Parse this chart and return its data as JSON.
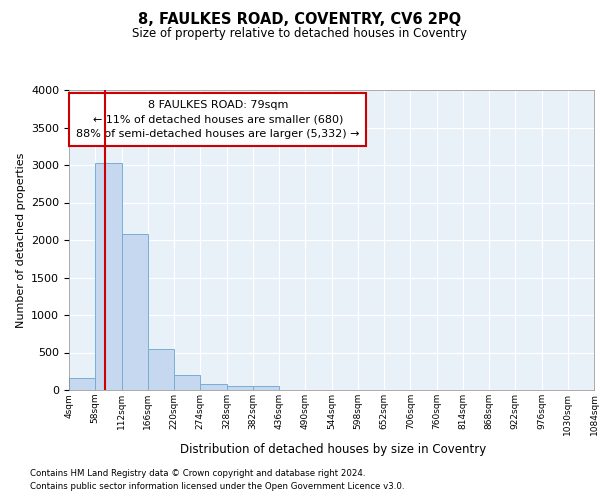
{
  "title": "8, FAULKES ROAD, COVENTRY, CV6 2PQ",
  "subtitle": "Size of property relative to detached houses in Coventry",
  "xlabel": "Distribution of detached houses by size in Coventry",
  "ylabel": "Number of detached properties",
  "annotation_text": "8 FAULKES ROAD: 79sqm\n← 11% of detached houses are smaller (680)\n88% of semi-detached houses are larger (5,332) →",
  "footer1": "Contains HM Land Registry data © Crown copyright and database right 2024.",
  "footer2": "Contains public sector information licensed under the Open Government Licence v3.0.",
  "property_size": 79,
  "bar_color": "#c5d8f0",
  "bar_edge_color": "#7aadd4",
  "red_line_color": "#cc0000",
  "annotation_box_edgecolor": "#cc0000",
  "plot_bg_color": "#e8f0f8",
  "ylim": [
    0,
    4000
  ],
  "yticks": [
    0,
    500,
    1000,
    1500,
    2000,
    2500,
    3000,
    3500,
    4000
  ],
  "bin_edges": [
    4,
    58,
    112,
    166,
    220,
    274,
    328,
    382,
    436,
    490,
    544,
    598,
    652,
    706,
    760,
    814,
    868,
    922,
    976,
    1030,
    1084
  ],
  "bar_heights": [
    155,
    3030,
    2080,
    550,
    205,
    75,
    55,
    55,
    0,
    0,
    0,
    0,
    0,
    0,
    0,
    0,
    0,
    0,
    0,
    0
  ]
}
